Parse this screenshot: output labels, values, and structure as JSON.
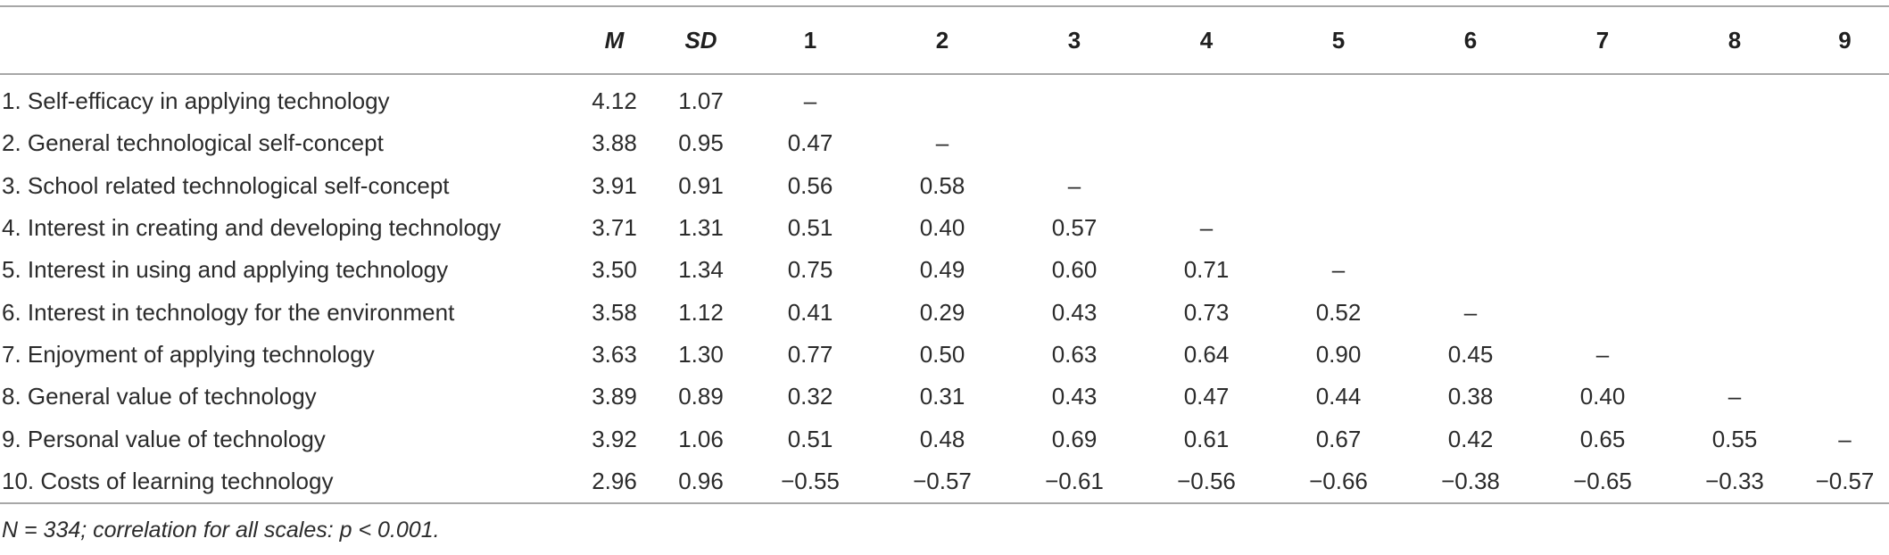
{
  "columns": [
    "",
    "M",
    "SD",
    "1",
    "2",
    "3",
    "4",
    "5",
    "6",
    "7",
    "8",
    "9"
  ],
  "rows": [
    {
      "label": "1. Self-efficacy in applying technology",
      "cells": [
        "4.12",
        "1.07",
        "–",
        "",
        "",
        "",
        "",
        "",
        "",
        "",
        ""
      ]
    },
    {
      "label": "2. General technological self-concept",
      "cells": [
        "3.88",
        "0.95",
        "0.47",
        "–",
        "",
        "",
        "",
        "",
        "",
        "",
        ""
      ]
    },
    {
      "label": "3. School related technological self-concept",
      "cells": [
        "3.91",
        "0.91",
        "0.56",
        "0.58",
        "–",
        "",
        "",
        "",
        "",
        "",
        ""
      ]
    },
    {
      "label": "4. Interest in creating and developing technology",
      "cells": [
        "3.71",
        "1.31",
        "0.51",
        "0.40",
        "0.57",
        "–",
        "",
        "",
        "",
        "",
        ""
      ]
    },
    {
      "label": "5. Interest in using and applying technology",
      "cells": [
        "3.50",
        "1.34",
        "0.75",
        "0.49",
        "0.60",
        "0.71",
        "–",
        "",
        "",
        "",
        ""
      ]
    },
    {
      "label": "6. Interest in technology for the environment",
      "cells": [
        "3.58",
        "1.12",
        "0.41",
        "0.29",
        "0.43",
        "0.73",
        "0.52",
        "–",
        "",
        "",
        ""
      ]
    },
    {
      "label": "7. Enjoyment of applying technology",
      "cells": [
        "3.63",
        "1.30",
        "0.77",
        "0.50",
        "0.63",
        "0.64",
        "0.90",
        "0.45",
        "–",
        "",
        ""
      ]
    },
    {
      "label": "8. General value of technology",
      "cells": [
        "3.89",
        "0.89",
        "0.32",
        "0.31",
        "0.43",
        "0.47",
        "0.44",
        "0.38",
        "0.40",
        "–",
        ""
      ]
    },
    {
      "label": "9. Personal value of technology",
      "cells": [
        "3.92",
        "1.06",
        "0.51",
        "0.48",
        "0.69",
        "0.61",
        "0.67",
        "0.42",
        "0.65",
        "0.55",
        "–"
      ]
    },
    {
      "label": "10. Costs of learning technology",
      "cells": [
        "2.96",
        "0.96",
        "−0.55",
        "−0.57",
        "−0.61",
        "−0.56",
        "−0.66",
        "−0.38",
        "−0.65",
        "−0.33",
        "−0.57"
      ]
    }
  ],
  "note": "N = 334; correlation for all scales: p < 0.001."
}
